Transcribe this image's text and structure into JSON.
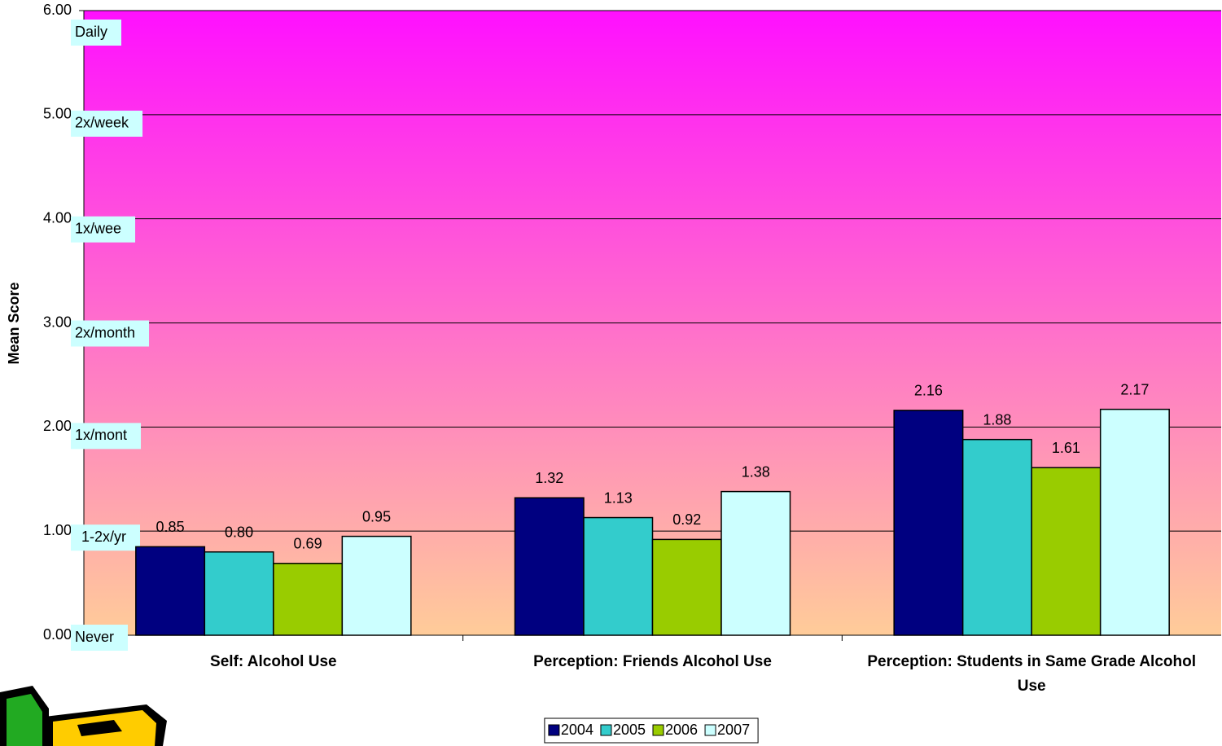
{
  "chart_data": {
    "type": "bar",
    "y_axis_label": "Mean Score",
    "categories": [
      "Self: Alcohol Use",
      "Perception: Friends Alcohol Use",
      "Perception: Students in Same Grade Alcohol Use"
    ],
    "series": [
      {
        "name": "2004",
        "color": "#000080",
        "values": [
          0.85,
          1.32,
          2.16
        ],
        "value_labels": [
          "0.85",
          "1.32",
          "2.16"
        ]
      },
      {
        "name": "2005",
        "color": "#33cccc",
        "values": [
          0.8,
          1.13,
          1.88
        ],
        "value_labels": [
          "0.80",
          "1.13",
          "1.88"
        ]
      },
      {
        "name": "2006",
        "color": "#99cc00",
        "values": [
          0.69,
          0.92,
          1.61
        ],
        "value_labels": [
          "0.69",
          "0.92",
          "1.61"
        ]
      },
      {
        "name": "2007",
        "color": "#ccffff",
        "values": [
          0.95,
          1.38,
          2.17
        ],
        "value_labels": [
          "0.95",
          "1.38",
          "2.17"
        ]
      }
    ],
    "ylim": [
      0,
      6
    ],
    "yticks": [
      {
        "value": 0,
        "label": "0.00"
      },
      {
        "value": 1,
        "label": "1.00"
      },
      {
        "value": 2,
        "label": "2.00"
      },
      {
        "value": 3,
        "label": "3.00"
      },
      {
        "value": 4,
        "label": "4.00"
      },
      {
        "value": 5,
        "label": "5.00"
      },
      {
        "value": 6,
        "label": "6.00"
      }
    ],
    "grid": true,
    "legend": "bottom",
    "scale_labels": [
      "Daily",
      "2x/week",
      "1x/wee",
      "2x/month",
      "1x/mont",
      "1-2x/yr",
      "Never"
    ]
  }
}
